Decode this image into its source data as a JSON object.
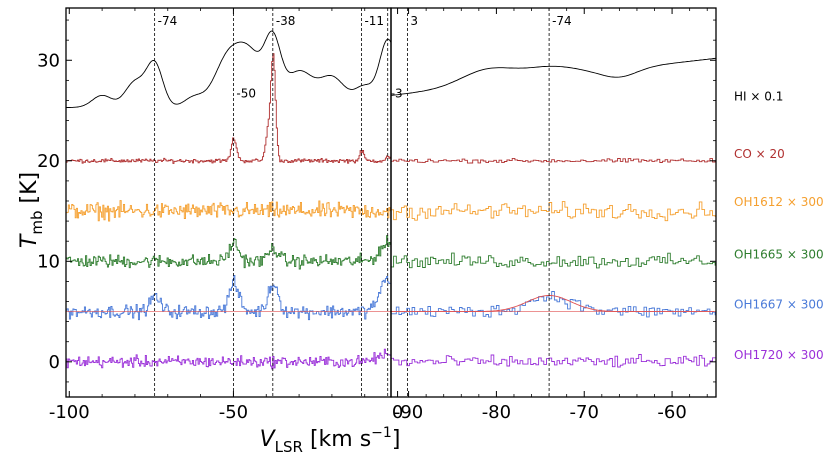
{
  "chart_data": {
    "type": "line",
    "ylabel": "T_mb [K]",
    "ylabel_main": "T",
    "ylabel_sub": "mb",
    "ylabel_unit": " [K]",
    "xlabel": "V_LSR [km s^-1]",
    "xlabel_main": "V",
    "xlabel_sub": "LSR",
    "xlabel_unit": " [km s",
    "xlabel_sup": "−1",
    "xlabel_close": "]",
    "ylim": [
      -3.5,
      35.2
    ],
    "yticks": [
      0,
      10,
      20,
      30
    ],
    "panels": [
      {
        "xlim": [
          -101,
          -2
        ],
        "xticks": [
          -100,
          -50,
          0
        ],
        "vlines": [
          {
            "x": -74,
            "label": "-74",
            "label_y": 33.5
          },
          {
            "x": -50,
            "label": "-50",
            "label_y": 26.3
          },
          {
            "x": -38,
            "label": "-38",
            "label_y": 33.5
          },
          {
            "x": -11,
            "label": "-11",
            "label_y": 33.5
          },
          {
            "x": -3,
            "label": "-3",
            "label_y": 26.3
          },
          {
            "x": 3,
            "label": "3",
            "label_y": 33.5
          }
        ]
      },
      {
        "xlim": [
          -92,
          -55
        ],
        "xticks": [
          -90,
          -80,
          -70,
          -60
        ],
        "vlines": [
          {
            "x": -74,
            "label": "-74",
            "label_y": 33.5
          }
        ]
      }
    ],
    "series": [
      {
        "name": "HI × 0.1",
        "color": "#000000",
        "offset": 25,
        "label_y": 26.0,
        "type": "smooth"
      },
      {
        "name": "CO × 20",
        "color": "#b03030",
        "offset": 20,
        "label_y": 20.3,
        "type": "step"
      },
      {
        "name": "OH1612 × 300",
        "color": "#f5a030",
        "offset": 15,
        "label_y": 15.5,
        "type": "step"
      },
      {
        "name": "OH1665 × 300",
        "color": "#2e7d2e",
        "offset": 10,
        "label_y": 10.3,
        "type": "step"
      },
      {
        "name": "OH1667 × 300",
        "color": "#4a7ad8",
        "offset": 5,
        "label_y": 5.3,
        "type": "step"
      },
      {
        "name": "OH1720 × 300",
        "color": "#9b30d9",
        "offset": 0,
        "label_y": 0.3,
        "type": "step"
      }
    ],
    "fit_line": {
      "color": "#e05050",
      "y": 5.0
    },
    "fit_gauss": {
      "center": -74,
      "amp": 1.6,
      "sigma": 2.5,
      "base": 5.0
    }
  }
}
